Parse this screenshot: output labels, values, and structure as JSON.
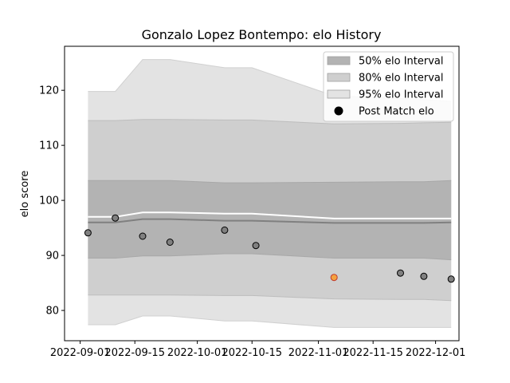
{
  "chart_data": {
    "type": "line",
    "title": "Gonzalo Lopez Bontempo: elo History",
    "xlabel": "",
    "ylabel": "elo score",
    "xlim": [
      "2022-08-28",
      "2022-12-07"
    ],
    "ylim": [
      74.5,
      128
    ],
    "x_ticks": [
      "2022-09-01",
      "2022-09-15",
      "2022-10-01",
      "2022-10-15",
      "2022-11-01",
      "2022-11-15",
      "2022-12-01"
    ],
    "y_ticks": [
      80,
      90,
      100,
      110,
      120
    ],
    "legend_position": "top-right",
    "colors": {
      "band50": "#b3b3b3",
      "band80": "#cfcfcf",
      "band95": "#e3e3e3",
      "median": "#808080",
      "mean": "#ffffff",
      "point": "#808080",
      "highlight": "#f4a340"
    },
    "bands": {
      "x": [
        "2022-09-03",
        "2022-09-10",
        "2022-09-17",
        "2022-09-24",
        "2022-10-08",
        "2022-10-15",
        "2022-11-05",
        "2022-11-22",
        "2022-11-28",
        "2022-12-05"
      ],
      "p95_upper": [
        119.8,
        119.8,
        125.6,
        125.6,
        124.1,
        124.1,
        119.0,
        118.5,
        118.3,
        118.0
      ],
      "p95_lower": [
        77.4,
        77.4,
        79.0,
        79.0,
        78.1,
        78.1,
        76.9,
        76.9,
        76.9,
        76.9
      ],
      "p80_upper": [
        114.5,
        114.5,
        114.7,
        114.7,
        114.6,
        114.6,
        113.9,
        114.0,
        114.1,
        114.2
      ],
      "p80_lower": [
        82.8,
        82.8,
        82.8,
        82.8,
        82.7,
        82.7,
        82.1,
        82.0,
        82.0,
        81.8
      ],
      "p50_upper": [
        103.6,
        103.6,
        103.6,
        103.6,
        103.2,
        103.2,
        103.3,
        103.4,
        103.4,
        103.6
      ],
      "p50_lower": [
        89.5,
        89.5,
        89.9,
        89.9,
        90.3,
        90.3,
        89.5,
        89.5,
        89.5,
        89.2
      ],
      "median": [
        96.0,
        96.0,
        96.6,
        96.6,
        96.3,
        96.3,
        95.9,
        95.9,
        95.9,
        96.0
      ],
      "mean": [
        97.0,
        97.0,
        97.8,
        97.8,
        97.6,
        97.6,
        96.7,
        96.7,
        96.7,
        96.7
      ]
    },
    "points": [
      {
        "x": "2022-09-03",
        "y": 94.1,
        "highlight": false
      },
      {
        "x": "2022-09-10",
        "y": 96.8,
        "highlight": false
      },
      {
        "x": "2022-09-17",
        "y": 93.5,
        "highlight": false
      },
      {
        "x": "2022-09-24",
        "y": 92.4,
        "highlight": false
      },
      {
        "x": "2022-10-08",
        "y": 94.6,
        "highlight": false
      },
      {
        "x": "2022-10-16",
        "y": 91.8,
        "highlight": false
      },
      {
        "x": "2022-11-05",
        "y": 86.0,
        "highlight": true
      },
      {
        "x": "2022-11-22",
        "y": 86.8,
        "highlight": false
      },
      {
        "x": "2022-11-28",
        "y": 86.2,
        "highlight": false
      },
      {
        "x": "2022-12-05",
        "y": 85.7,
        "highlight": false
      }
    ],
    "legend": [
      {
        "label": "50% elo Interval",
        "kind": "band50"
      },
      {
        "label": "80% elo Interval",
        "kind": "band80"
      },
      {
        "label": "95% elo Interval",
        "kind": "band95"
      },
      {
        "label": "Post Match elo",
        "kind": "point"
      }
    ]
  }
}
